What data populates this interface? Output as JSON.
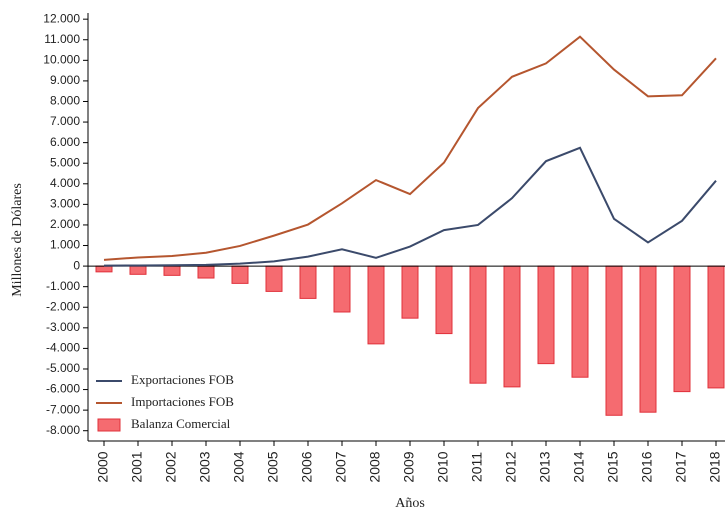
{
  "chart_data": {
    "type": "line",
    "y_label": "Millones de Dólares",
    "x_label": "Años",
    "categories": [
      "2000",
      "2001",
      "2002",
      "2003",
      "2004",
      "2005",
      "2006",
      "2007",
      "2008",
      "2009",
      "2010",
      "2011",
      "2012",
      "2013",
      "2014",
      "2015",
      "2016",
      "2017",
      "2018"
    ],
    "series": [
      {
        "name": "Exportaciones FOB",
        "type": "line",
        "color": "#3b4a6b",
        "values": [
          20,
          30,
          40,
          60,
          120,
          230,
          460,
          820,
          400,
          950,
          1750,
          2000,
          3300,
          5100,
          5750,
          2300,
          1150,
          2200,
          4150
        ]
      },
      {
        "name": "Importaciones FOB",
        "type": "line",
        "color": "#b5562f",
        "values": [
          300,
          420,
          490,
          650,
          980,
          1480,
          2020,
          3050,
          4180,
          3500,
          5030,
          7680,
          9200,
          9850,
          11150,
          9550,
          8250,
          8300,
          10100
        ]
      },
      {
        "name": "Balanza Comercial",
        "type": "bar",
        "color": "#f56b70",
        "values": [
          -280,
          -400,
          -450,
          -580,
          -840,
          -1230,
          -1570,
          -2230,
          -3780,
          -2530,
          -3280,
          -5690,
          -5870,
          -4740,
          -5400,
          -7250,
          -7100,
          -6100,
          -5920
        ]
      }
    ],
    "ylim": [
      -8500,
      12300
    ],
    "yticks": [
      {
        "value": -8000,
        "label": "-8.000"
      },
      {
        "value": -7000,
        "label": "-7.000"
      },
      {
        "value": -6000,
        "label": "-6.000"
      },
      {
        "value": -5000,
        "label": "-5.000"
      },
      {
        "value": -4000,
        "label": "-4.000"
      },
      {
        "value": -3000,
        "label": "-3.000"
      },
      {
        "value": -2000,
        "label": "-2.000"
      },
      {
        "value": -1000,
        "label": "-1.000"
      },
      0,
      {
        "value": 1000,
        "label": "1.000"
      },
      {
        "value": 2000,
        "label": "2.000"
      },
      {
        "value": 3000,
        "label": "3.000"
      },
      {
        "value": 4000,
        "label": "4.000"
      },
      {
        "value": 5000,
        "label": "5.000"
      },
      {
        "value": 6000,
        "label": "6.000"
      },
      {
        "value": 7000,
        "label": "7.000"
      },
      {
        "value": 8000,
        "label": "8.000"
      },
      {
        "value": 9000,
        "label": "9.000"
      },
      {
        "value": 10000,
        "label": "10.000"
      },
      {
        "value": 11000,
        "label": "11.000"
      },
      {
        "value": 12000,
        "label": "12.000"
      }
    ],
    "legend": "lower left"
  }
}
